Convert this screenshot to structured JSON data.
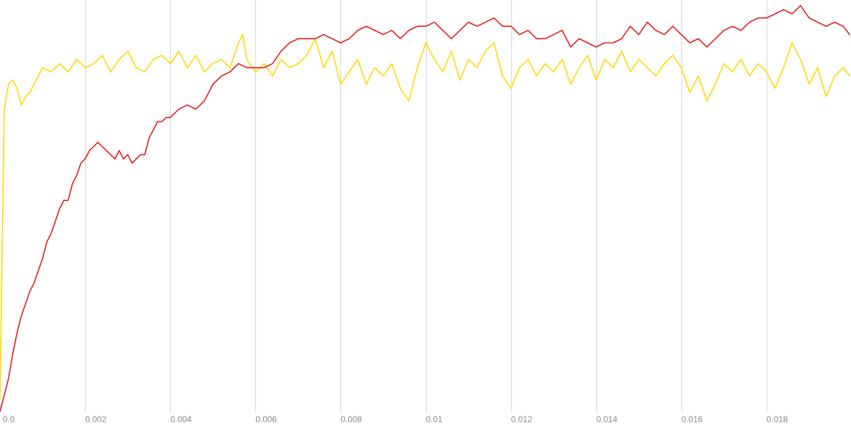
{
  "chart_data": {
    "type": "line",
    "title": "",
    "xlabel": "",
    "ylabel": "",
    "xlim": [
      0,
      0.01995
    ],
    "ylim": [
      0,
      1
    ],
    "grid": "vertical",
    "x_ticks": [
      {
        "value": 0,
        "label": "0.0"
      },
      {
        "value": 0.002,
        "label": "0.002"
      },
      {
        "value": 0.004,
        "label": "0.004"
      },
      {
        "value": 0.006,
        "label": "0.006"
      },
      {
        "value": 0.008,
        "label": "0.008"
      },
      {
        "value": 0.01,
        "label": "0.01"
      },
      {
        "value": 0.012,
        "label": "0.012"
      },
      {
        "value": 0.014,
        "label": "0.014"
      },
      {
        "value": 0.016,
        "label": "0.016"
      },
      {
        "value": 0.018,
        "label": "0.018"
      }
    ],
    "series": [
      {
        "color": "#ffd700",
        "x": [
          0,
          0.0001,
          0.0002,
          0.0003,
          0.0004,
          0.0005,
          0.0006,
          0.0007,
          0.0008,
          0.0009,
          0.001,
          0.0012,
          0.0014,
          0.0016,
          0.0018,
          0.002,
          0.0022,
          0.0024,
          0.0026,
          0.0028,
          0.003,
          0.0032,
          0.0034,
          0.0036,
          0.0038,
          0.004,
          0.0042,
          0.0044,
          0.0046,
          0.0048,
          0.005,
          0.0052,
          0.0054,
          0.0056,
          0.0057,
          0.0058,
          0.006,
          0.0062,
          0.0064,
          0.0066,
          0.0068,
          0.007,
          0.0072,
          0.0074,
          0.0076,
          0.0078,
          0.008,
          0.0082,
          0.0084,
          0.0086,
          0.0088,
          0.009,
          0.0092,
          0.0094,
          0.0096,
          0.0098,
          0.01,
          0.0102,
          0.0104,
          0.0106,
          0.0108,
          0.011,
          0.0112,
          0.0114,
          0.0116,
          0.0118,
          0.012,
          0.0122,
          0.0124,
          0.0126,
          0.0128,
          0.013,
          0.0132,
          0.0134,
          0.0136,
          0.0138,
          0.014,
          0.0142,
          0.0144,
          0.0146,
          0.0148,
          0.015,
          0.0152,
          0.0154,
          0.0156,
          0.0158,
          0.016,
          0.0162,
          0.0164,
          0.0166,
          0.0168,
          0.017,
          0.0172,
          0.0174,
          0.0176,
          0.0178,
          0.018,
          0.0182,
          0.0184,
          0.0186,
          0.0188,
          0.019,
          0.0192,
          0.0194,
          0.0196,
          0.0198,
          0.01995
        ],
        "y": [
          0.04,
          0.74,
          0.8,
          0.81,
          0.79,
          0.75,
          0.77,
          0.78,
          0.8,
          0.82,
          0.84,
          0.83,
          0.85,
          0.83,
          0.86,
          0.84,
          0.85,
          0.87,
          0.83,
          0.86,
          0.88,
          0.84,
          0.83,
          0.86,
          0.87,
          0.85,
          0.88,
          0.84,
          0.87,
          0.83,
          0.85,
          0.86,
          0.84,
          0.9,
          0.92,
          0.86,
          0.83,
          0.85,
          0.82,
          0.86,
          0.84,
          0.85,
          0.87,
          0.91,
          0.84,
          0.88,
          0.8,
          0.83,
          0.86,
          0.8,
          0.84,
          0.82,
          0.85,
          0.79,
          0.76,
          0.84,
          0.9,
          0.86,
          0.83,
          0.88,
          0.81,
          0.86,
          0.84,
          0.88,
          0.9,
          0.82,
          0.79,
          0.84,
          0.86,
          0.82,
          0.85,
          0.83,
          0.86,
          0.8,
          0.84,
          0.87,
          0.81,
          0.86,
          0.84,
          0.88,
          0.83,
          0.86,
          0.84,
          0.82,
          0.85,
          0.87,
          0.84,
          0.78,
          0.82,
          0.76,
          0.8,
          0.85,
          0.83,
          0.86,
          0.82,
          0.85,
          0.83,
          0.79,
          0.84,
          0.9,
          0.86,
          0.8,
          0.84,
          0.77,
          0.82,
          0.84,
          0.82
        ]
      },
      {
        "color": "#e31a1c",
        "x": [
          0,
          0.0001,
          0.0002,
          0.0003,
          0.0004,
          0.0005,
          0.0006,
          0.0007,
          0.0008,
          0.0009,
          0.001,
          0.0011,
          0.0012,
          0.0013,
          0.0014,
          0.0015,
          0.0016,
          0.0017,
          0.0018,
          0.0019,
          0.002,
          0.0021,
          0.0022,
          0.0023,
          0.0024,
          0.0025,
          0.0026,
          0.0027,
          0.0028,
          0.0029,
          0.003,
          0.0031,
          0.0032,
          0.0033,
          0.0034,
          0.0035,
          0.0036,
          0.0037,
          0.0038,
          0.0039,
          0.004,
          0.0042,
          0.0044,
          0.0046,
          0.0048,
          0.005,
          0.0052,
          0.0054,
          0.0056,
          0.0058,
          0.006,
          0.0062,
          0.0064,
          0.0066,
          0.0068,
          0.007,
          0.0072,
          0.0074,
          0.0076,
          0.0078,
          0.008,
          0.0082,
          0.0084,
          0.0086,
          0.0088,
          0.009,
          0.0092,
          0.0094,
          0.0096,
          0.0098,
          0.01,
          0.0102,
          0.0104,
          0.0106,
          0.0108,
          0.011,
          0.0112,
          0.0114,
          0.0116,
          0.0118,
          0.012,
          0.0122,
          0.0124,
          0.0126,
          0.0128,
          0.013,
          0.0132,
          0.0134,
          0.0136,
          0.0138,
          0.014,
          0.0142,
          0.0144,
          0.0146,
          0.0148,
          0.015,
          0.0152,
          0.0154,
          0.0156,
          0.0158,
          0.016,
          0.0162,
          0.0164,
          0.0166,
          0.0168,
          0.017,
          0.0172,
          0.0174,
          0.0176,
          0.0178,
          0.018,
          0.0182,
          0.0184,
          0.0186,
          0.0188,
          0.019,
          0.0192,
          0.0194,
          0.0196,
          0.0198,
          0.01995
        ],
        "y": [
          0.01,
          0.05,
          0.09,
          0.15,
          0.2,
          0.24,
          0.27,
          0.3,
          0.32,
          0.35,
          0.38,
          0.42,
          0.44,
          0.47,
          0.5,
          0.52,
          0.52,
          0.56,
          0.58,
          0.61,
          0.62,
          0.64,
          0.65,
          0.66,
          0.65,
          0.64,
          0.63,
          0.62,
          0.64,
          0.62,
          0.63,
          0.61,
          0.62,
          0.63,
          0.63,
          0.67,
          0.69,
          0.71,
          0.71,
          0.72,
          0.72,
          0.74,
          0.75,
          0.74,
          0.76,
          0.8,
          0.82,
          0.83,
          0.85,
          0.84,
          0.84,
          0.84,
          0.85,
          0.88,
          0.9,
          0.91,
          0.91,
          0.91,
          0.92,
          0.91,
          0.9,
          0.91,
          0.93,
          0.94,
          0.93,
          0.92,
          0.93,
          0.91,
          0.93,
          0.94,
          0.94,
          0.95,
          0.93,
          0.91,
          0.93,
          0.95,
          0.94,
          0.95,
          0.96,
          0.94,
          0.94,
          0.92,
          0.93,
          0.91,
          0.91,
          0.92,
          0.93,
          0.89,
          0.91,
          0.9,
          0.89,
          0.9,
          0.9,
          0.91,
          0.94,
          0.92,
          0.95,
          0.93,
          0.92,
          0.94,
          0.92,
          0.9,
          0.91,
          0.89,
          0.91,
          0.93,
          0.94,
          0.93,
          0.95,
          0.96,
          0.96,
          0.97,
          0.98,
          0.97,
          0.99,
          0.96,
          0.95,
          0.94,
          0.95,
          0.94,
          0.92
        ]
      }
    ]
  }
}
